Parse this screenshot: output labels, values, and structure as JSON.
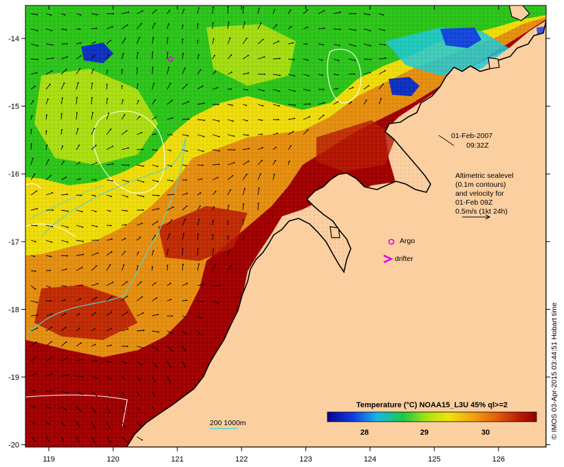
{
  "axes": {
    "lon_ticks": [
      "119",
      "120",
      "121",
      "122",
      "123",
      "124",
      "125",
      "126"
    ],
    "lat_ticks": [
      "-14",
      "-15",
      "-16",
      "-17",
      "-18",
      "-19",
      "-20"
    ]
  },
  "annotations": {
    "date_line1": "01-Feb-2007",
    "date_line2": "09:32Z",
    "sealevel": [
      "Altimetric sealevel",
      "(0.1m contours)",
      "and velocity for",
      "01-Feb 09Z",
      "0.5m/s (1kt 24h)"
    ],
    "argo_label": "Argo",
    "drifter_label": "drifter",
    "depth_label": "200  1000m"
  },
  "colorbar": {
    "title": "Temperature (°C) NOAA15_L3U 45% ql>=2",
    "ticks": [
      "28",
      "29",
      "30"
    ]
  },
  "credit": "© IMOS 03-Apr-2015 03:44:51 Hobart time",
  "colors": {
    "land": "#fbcfa0",
    "deep_red": "#a00000",
    "orange": "#e48e10",
    "yellow": "#eedb0a",
    "green": "#2cc31a",
    "cyan": "#1ec9d8",
    "blue": "#1030c0",
    "argo": "#e000e0",
    "depth_contour": "#4fd8d0"
  }
}
